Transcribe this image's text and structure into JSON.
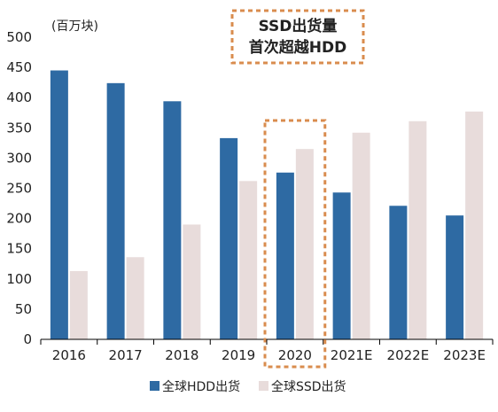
{
  "chart_data": {
    "type": "bar",
    "title_lines": [
      "SSD出货量",
      "首次超越HDD"
    ],
    "unit_label": "(百万块)",
    "categories": [
      "2016",
      "2017",
      "2018",
      "2019",
      "2020",
      "2021E",
      "2022E",
      "2023E"
    ],
    "highlighted_category": "2020",
    "y_ticks": [
      "0",
      "50",
      "100",
      "150",
      "200",
      "250",
      "300",
      "350",
      "400",
      "450",
      "500"
    ],
    "ylim": [
      0,
      500
    ],
    "grid": false,
    "legend_position": "bottom",
    "series": [
      {
        "name": "全球HDD出货",
        "color": "#2e6aa3",
        "values": [
          445,
          424,
          394,
          333,
          276,
          243,
          221,
          205
        ]
      },
      {
        "name": "全球SSD出货",
        "color": "#e8dcdb",
        "values": [
          113,
          136,
          190,
          262,
          315,
          342,
          361,
          377
        ]
      }
    ],
    "highlight_color": "#d98c4e"
  }
}
